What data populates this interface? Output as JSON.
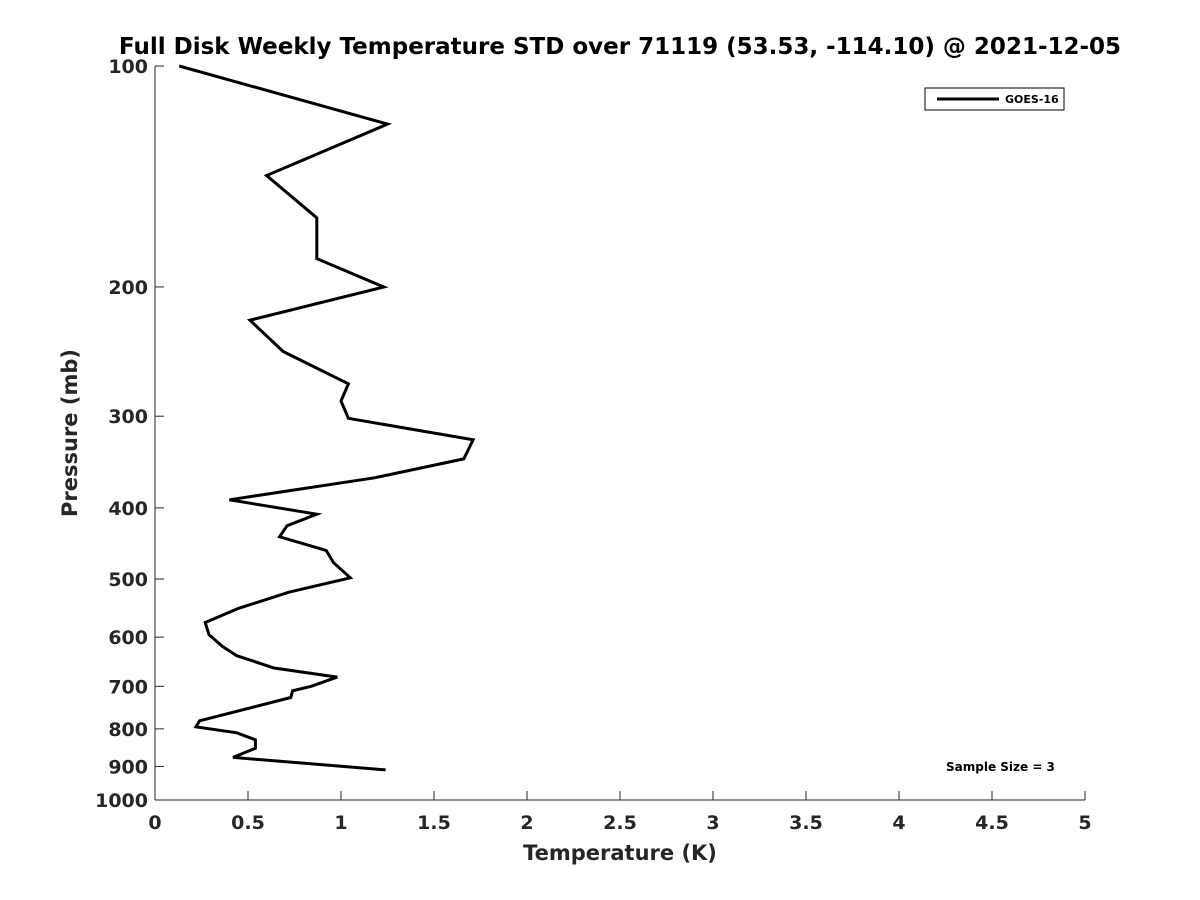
{
  "chart_data": {
    "type": "line",
    "title": "Full Disk Weekly Temperature STD over 71119 (53.53, -114.10) @ 2021-12-05",
    "xlabel": "Temperature (K)",
    "ylabel": "Pressure (mb)",
    "xlim": [
      0,
      5
    ],
    "ylim": [
      100,
      1000
    ],
    "y_scale": "log",
    "y_reversed": true,
    "grid": false,
    "legend_position": "top-right",
    "x_ticks": [
      0,
      0.5,
      1,
      1.5,
      2,
      2.5,
      3,
      3.5,
      4,
      4.5,
      5
    ],
    "x_tick_labels": [
      "0",
      "0.5",
      "1",
      "1.5",
      "2",
      "2.5",
      "3",
      "3.5",
      "4",
      "4.5",
      "5"
    ],
    "y_ticks": [
      100,
      200,
      300,
      400,
      500,
      600,
      700,
      800,
      900,
      1000
    ],
    "y_tick_labels": [
      "100",
      "200",
      "300",
      "400",
      "500",
      "600",
      "700",
      "800",
      "900",
      "1000"
    ],
    "series": [
      {
        "name": "GOES-16",
        "color": "#000000",
        "points": [
          [
            0.13,
            100
          ],
          [
            1.25,
            120
          ],
          [
            0.6,
            141
          ],
          [
            0.87,
            161
          ],
          [
            0.87,
            183
          ],
          [
            1.23,
            200
          ],
          [
            0.51,
            222
          ],
          [
            0.69,
            245
          ],
          [
            1.04,
            271
          ],
          [
            1.0,
            286
          ],
          [
            1.04,
            302
          ],
          [
            1.71,
            323
          ],
          [
            1.66,
            343
          ],
          [
            1.18,
            364
          ],
          [
            0.4,
            390
          ],
          [
            0.87,
            408
          ],
          [
            0.71,
            423
          ],
          [
            0.67,
            438
          ],
          [
            0.92,
            457
          ],
          [
            0.96,
            475
          ],
          [
            1.05,
            498
          ],
          [
            0.72,
            521
          ],
          [
            0.45,
            548
          ],
          [
            0.27,
            573
          ],
          [
            0.29,
            595
          ],
          [
            0.36,
            617
          ],
          [
            0.44,
            636
          ],
          [
            0.64,
            661
          ],
          [
            0.98,
            680
          ],
          [
            0.84,
            700
          ],
          [
            0.74,
            710
          ],
          [
            0.73,
            725
          ],
          [
            0.24,
            780
          ],
          [
            0.22,
            795
          ],
          [
            0.44,
            810
          ],
          [
            0.54,
            828
          ],
          [
            0.54,
            850
          ],
          [
            0.42,
            875
          ],
          [
            1.24,
            910
          ]
        ]
      }
    ],
    "annotations": [
      "Sample Size = 3"
    ]
  }
}
